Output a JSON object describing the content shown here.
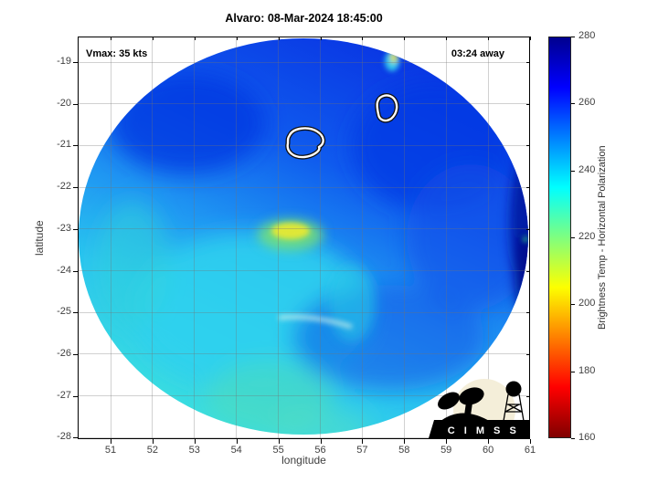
{
  "title": "Alvaro: 08-Mar-2024 18:45:00",
  "annotations": {
    "vmax_label": "Vmax: 35 kts",
    "time_away_label": "03:24 away"
  },
  "axes": {
    "xlabel": "longitude",
    "ylabel": "latitude",
    "x_ticks": [
      "51",
      "52",
      "53",
      "54",
      "55",
      "56",
      "57",
      "58",
      "59",
      "60",
      "61"
    ],
    "y_ticks": [
      "-19",
      "-20",
      "-21",
      "-22",
      "-23",
      "-24",
      "-25",
      "-26",
      "-27",
      "-28"
    ]
  },
  "colorbar": {
    "label": "Brightness Temp - Horizontal Polarization",
    "ticks": [
      "280",
      "260",
      "240",
      "220",
      "200",
      "180",
      "160"
    ],
    "min": 160,
    "max": 280,
    "colormap": "jet-reversed",
    "top_color": "#00008F",
    "bottom_color": "#800000"
  },
  "logo": {
    "text": "C I M S S"
  },
  "chart_data": {
    "type": "heatmap",
    "title": "Alvaro: 08-Mar-2024 18:45:00",
    "xlabel": "longitude",
    "ylabel": "latitude",
    "xlim": [
      50.2,
      61
    ],
    "ylim": [
      -28.65,
      -18.4
    ],
    "x_ticks": [
      51,
      52,
      53,
      54,
      55,
      56,
      57,
      58,
      59,
      60,
      61
    ],
    "y_ticks": [
      -19,
      -20,
      -21,
      -22,
      -23,
      -24,
      -25,
      -26,
      -27,
      -28
    ],
    "grid": true,
    "colorbar": {
      "label": "Brightness Temp - Horizontal Polarization",
      "range": [
        160,
        280
      ],
      "ticks": [
        160,
        180,
        200,
        220,
        240,
        260,
        280
      ],
      "colormap": "jet (dark blue = 280 K at top, through cyan/green/yellow/red, dark red = 160 K at bottom)",
      "position": "right"
    },
    "storm": {
      "name": "Alvaro",
      "datetime": "08-Mar-2024 18:45:00",
      "vmax_kts": 35,
      "time_offset": "03:24 away"
    },
    "swath": {
      "shape": "circular microwave swath on white background",
      "center_lon": 55.6,
      "center_lat": -23.4,
      "radius_deg": 5.3,
      "background_temp_K": "mostly 245-265 K (royal blue) in N/E half, 230-245 K (cyan) in SW half"
    },
    "features": [
      {
        "type": "contour-ring",
        "lon": 55.6,
        "lat": -21.0,
        "desc": "small closed contour, white with black outline"
      },
      {
        "type": "contour-ring",
        "lon": 57.5,
        "lat": -20.2,
        "desc": "small closed contour, white with black outline"
      },
      {
        "type": "warm-spot",
        "lon": 55.3,
        "lat": -23.0,
        "approx_temp_K": 212,
        "desc": "yellow-green patch near storm center"
      },
      {
        "type": "cold-dark-patch",
        "lon": 60.9,
        "lat": -23.2,
        "approx_temp_K": 277,
        "desc": "dark navy pixels at eastern swath edge"
      },
      {
        "type": "edge-bright-spot",
        "lon": 57.8,
        "lat": -18.9,
        "desc": "small cyan/yellow streak at northern swath edge"
      },
      {
        "type": "light-streak",
        "lon_start": 55.0,
        "lat_start": -25.1,
        "lon_end": 56.8,
        "lat_end": -25.3,
        "desc": "faint pale cyan streak"
      },
      {
        "type": "greenish-area",
        "lon": 54.0,
        "lat": -26.8,
        "desc": "green-tinted cyan patches in southern swath"
      }
    ],
    "branding": "CIMSS logo bottom-right inside axes"
  }
}
